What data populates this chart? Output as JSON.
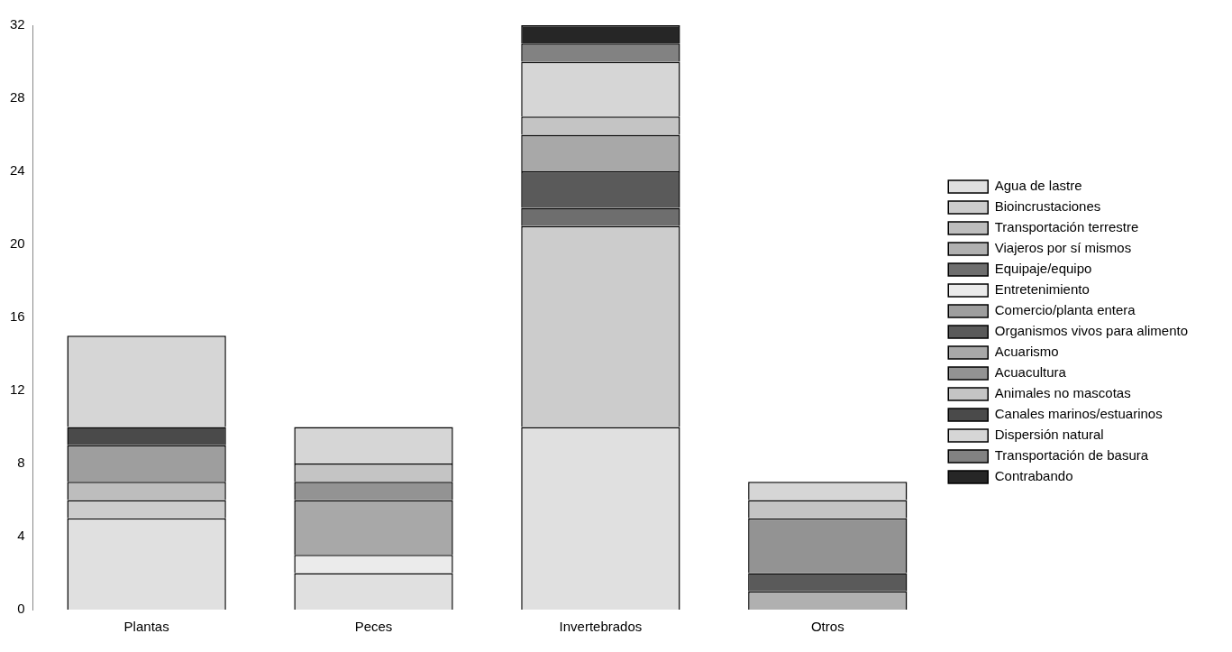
{
  "chart_data": {
    "type": "bar",
    "stacked": true,
    "categories": [
      "Plantas",
      "Peces",
      "Invertebrados",
      "Otros"
    ],
    "ylim": [
      0,
      32
    ],
    "yticks": [
      0,
      4,
      8,
      12,
      16,
      20,
      24,
      28,
      32
    ],
    "grid": false,
    "legend": "right",
    "series": [
      {
        "name": "Agua de lastre",
        "color": "#e0e0e0",
        "values": [
          5,
          2,
          10,
          null
        ]
      },
      {
        "name": "Bioincrustaciones",
        "color": "#cccccc",
        "values": [
          1,
          null,
          11,
          null
        ]
      },
      {
        "name": "Transportación terrestre",
        "color": "#bdbdbd",
        "values": [
          1,
          null,
          null,
          null
        ]
      },
      {
        "name": "Viajeros por sí mismos",
        "color": "#b0b0b0",
        "values": [
          null,
          null,
          null,
          1
        ]
      },
      {
        "name": "Equipaje/equipo",
        "color": "#6e6e6e",
        "values": [
          null,
          null,
          1,
          null
        ]
      },
      {
        "name": "Entretenimiento",
        "color": "#ebebeb",
        "values": [
          null,
          1,
          null,
          null
        ]
      },
      {
        "name": "Comercio/planta entera",
        "color": "#9e9e9e",
        "values": [
          2,
          null,
          null,
          null
        ]
      },
      {
        "name": "Organismos vivos para alimento",
        "color": "#5a5a5a",
        "values": [
          null,
          null,
          2,
          1
        ]
      },
      {
        "name": "Acuarismo",
        "color": "#a8a8a8",
        "values": [
          null,
          3,
          2,
          null
        ]
      },
      {
        "name": "Acuacultura",
        "color": "#939393",
        "values": [
          null,
          1,
          null,
          3
        ]
      },
      {
        "name": "Animales no mascotas",
        "color": "#c4c4c4",
        "values": [
          null,
          1,
          1,
          1
        ]
      },
      {
        "name": "Canales marinos/estuarinos",
        "color": "#4a4a4a",
        "values": [
          1,
          null,
          null,
          null
        ]
      },
      {
        "name": "Dispersión natural",
        "color": "#d6d6d6",
        "values": [
          5,
          2,
          3,
          1
        ]
      },
      {
        "name": "Transportación de basura",
        "color": "#828282",
        "values": [
          null,
          null,
          1,
          null
        ]
      },
      {
        "name": "Contrabando",
        "color": "#262626",
        "values": [
          null,
          null,
          1,
          null
        ]
      }
    ]
  }
}
